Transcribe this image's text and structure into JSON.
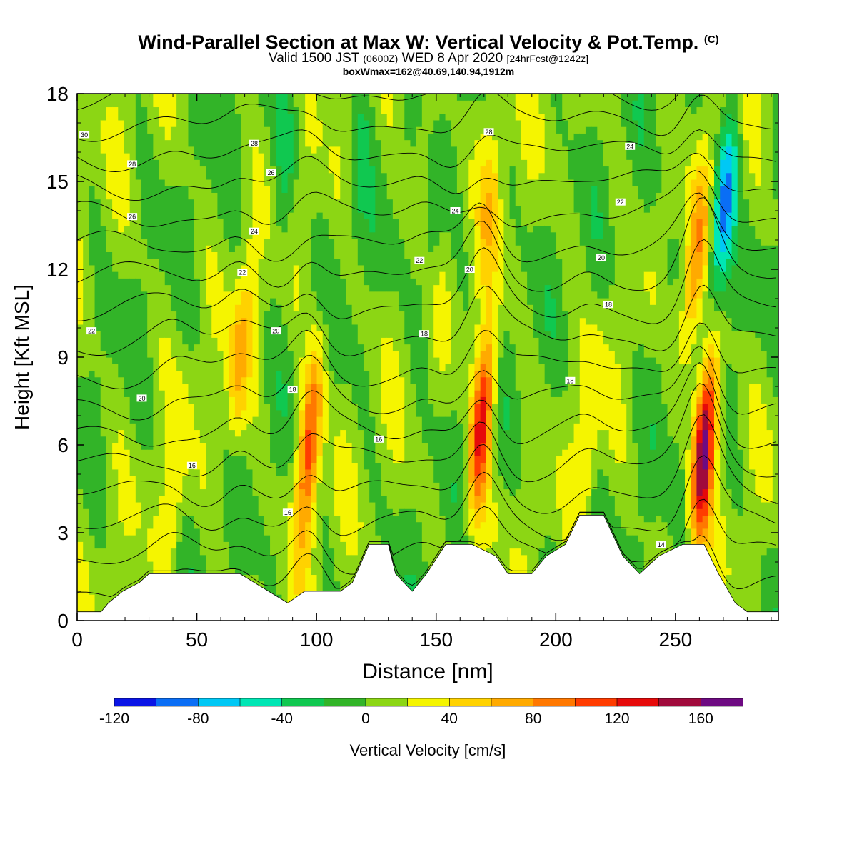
{
  "title": {
    "main": "Wind-Parallel Section at Max W: Vertical Velocity & Pot.Temp.",
    "main_units": "(C)",
    "valid_prefix": "Valid 1500 JST",
    "valid_utc": "(0600Z)",
    "valid_date": "WED 8 Apr 2020",
    "forecast": "[24hrFcst@1242z]",
    "boxwmax": "boxWmax=162@40.69,140.94,1912m"
  },
  "chart_data": {
    "type": "heatmap",
    "xlabel": "Distance [nm]",
    "ylabel": "Height [Kft MSL]",
    "xlim": [
      0,
      293
    ],
    "ylim": [
      0,
      18
    ],
    "x_ticks": [
      0,
      50,
      100,
      150,
      200,
      250
    ],
    "y_ticks": [
      0,
      3,
      6,
      9,
      12,
      15,
      18
    ],
    "colorbar": {
      "label": "Vertical Velocity [cm/s]",
      "levels": [
        -120,
        -100,
        -80,
        -60,
        -40,
        -20,
        0,
        20,
        40,
        60,
        80,
        100,
        120,
        140,
        160,
        180
      ],
      "tick_labels": [
        -120,
        -80,
        -40,
        0,
        40,
        80,
        120,
        160
      ],
      "colors": [
        "#0a14e6",
        "#0a6ef5",
        "#00c8f5",
        "#00e6b4",
        "#10c850",
        "#32b428",
        "#8cd614",
        "#f5f500",
        "#ffd200",
        "#ffaa00",
        "#ff7800",
        "#ff3c00",
        "#e60a0a",
        "#a00a3c",
        "#6e0a82"
      ]
    },
    "background_w": 5,
    "updrafts": [
      {
        "x": 68,
        "z": 9.0,
        "w": 55
      },
      {
        "x": 97,
        "z": 6.0,
        "w": 110
      },
      {
        "x": 169,
        "z": 6.8,
        "w": 125
      },
      {
        "x": 262,
        "z": 6.0,
        "w": 165
      },
      {
        "x": 258,
        "z": 12.0,
        "w": 75
      },
      {
        "x": 172,
        "z": 14.0,
        "w": 35
      },
      {
        "x": 213,
        "z": 6.0,
        "w": 35
      },
      {
        "x": 40,
        "z": 4.0,
        "w": 30
      },
      {
        "x": 145,
        "z": 17.0,
        "w": 25
      }
    ],
    "downdrafts": [
      {
        "x": 270,
        "z": 14.0,
        "w": -95
      },
      {
        "x": 87,
        "z": 15.5,
        "w": -30
      },
      {
        "x": 118,
        "z": 16.0,
        "w": -25
      },
      {
        "x": 148,
        "z": 13.0,
        "w": -25
      },
      {
        "x": 245,
        "z": 10.0,
        "w": -20
      }
    ],
    "terrain": [
      {
        "x": 0,
        "h": 0.3
      },
      {
        "x": 10,
        "h": 0.3
      },
      {
        "x": 13,
        "h": 0.6
      },
      {
        "x": 19,
        "h": 1.0
      },
      {
        "x": 26,
        "h": 1.3
      },
      {
        "x": 30,
        "h": 1.6
      },
      {
        "x": 68,
        "h": 1.6
      },
      {
        "x": 80,
        "h": 1.0
      },
      {
        "x": 88,
        "h": 0.6
      },
      {
        "x": 95,
        "h": 1.0
      },
      {
        "x": 110,
        "h": 1.0
      },
      {
        "x": 115,
        "h": 1.3
      },
      {
        "x": 122,
        "h": 2.6
      },
      {
        "x": 130,
        "h": 2.6
      },
      {
        "x": 133,
        "h": 1.6
      },
      {
        "x": 140,
        "h": 1.0
      },
      {
        "x": 146,
        "h": 1.6
      },
      {
        "x": 154,
        "h": 2.6
      },
      {
        "x": 165,
        "h": 2.6
      },
      {
        "x": 175,
        "h": 2.2
      },
      {
        "x": 180,
        "h": 1.6
      },
      {
        "x": 190,
        "h": 1.6
      },
      {
        "x": 196,
        "h": 2.2
      },
      {
        "x": 204,
        "h": 2.6
      },
      {
        "x": 210,
        "h": 3.6
      },
      {
        "x": 220,
        "h": 3.6
      },
      {
        "x": 228,
        "h": 2.2
      },
      {
        "x": 235,
        "h": 1.6
      },
      {
        "x": 243,
        "h": 2.2
      },
      {
        "x": 253,
        "h": 2.6
      },
      {
        "x": 262,
        "h": 2.6
      },
      {
        "x": 268,
        "h": 1.6
      },
      {
        "x": 275,
        "h": 0.6
      },
      {
        "x": 280,
        "h": 0.3
      },
      {
        "x": 293,
        "h": 0.3
      }
    ],
    "theta_contours": {
      "levels": [
        14,
        15,
        16,
        17,
        18,
        19,
        20,
        21,
        22,
        23,
        24,
        25,
        26,
        27,
        28,
        29,
        30
      ],
      "labels": [
        {
          "x": 48,
          "z": 5.3,
          "text": "16"
        },
        {
          "x": 88,
          "z": 3.7,
          "text": "16"
        },
        {
          "x": 126,
          "z": 6.2,
          "text": "16"
        },
        {
          "x": 244,
          "z": 2.6,
          "text": "14"
        },
        {
          "x": 90,
          "z": 7.9,
          "text": "18"
        },
        {
          "x": 145,
          "z": 9.8,
          "text": "18"
        },
        {
          "x": 206,
          "z": 8.2,
          "text": "18"
        },
        {
          "x": 222,
          "z": 10.8,
          "text": "18"
        },
        {
          "x": 27,
          "z": 7.6,
          "text": "20"
        },
        {
          "x": 83,
          "z": 9.9,
          "text": "20"
        },
        {
          "x": 164,
          "z": 12.0,
          "text": "20"
        },
        {
          "x": 219,
          "z": 12.4,
          "text": "20"
        },
        {
          "x": 6,
          "z": 9.9,
          "text": "22"
        },
        {
          "x": 69,
          "z": 11.9,
          "text": "22"
        },
        {
          "x": 143,
          "z": 12.3,
          "text": "22"
        },
        {
          "x": 227,
          "z": 14.3,
          "text": "22"
        },
        {
          "x": 74,
          "z": 13.3,
          "text": "24"
        },
        {
          "x": 158,
          "z": 14.0,
          "text": "24"
        },
        {
          "x": 231,
          "z": 16.2,
          "text": "24"
        },
        {
          "x": 23,
          "z": 13.8,
          "text": "26"
        },
        {
          "x": 81,
          "z": 15.3,
          "text": "26"
        },
        {
          "x": 23,
          "z": 15.6,
          "text": "28"
        },
        {
          "x": 74,
          "z": 16.3,
          "text": "28"
        },
        {
          "x": 172,
          "z": 16.7,
          "text": "28"
        },
        {
          "x": 3,
          "z": 16.6,
          "text": "30"
        }
      ]
    }
  }
}
